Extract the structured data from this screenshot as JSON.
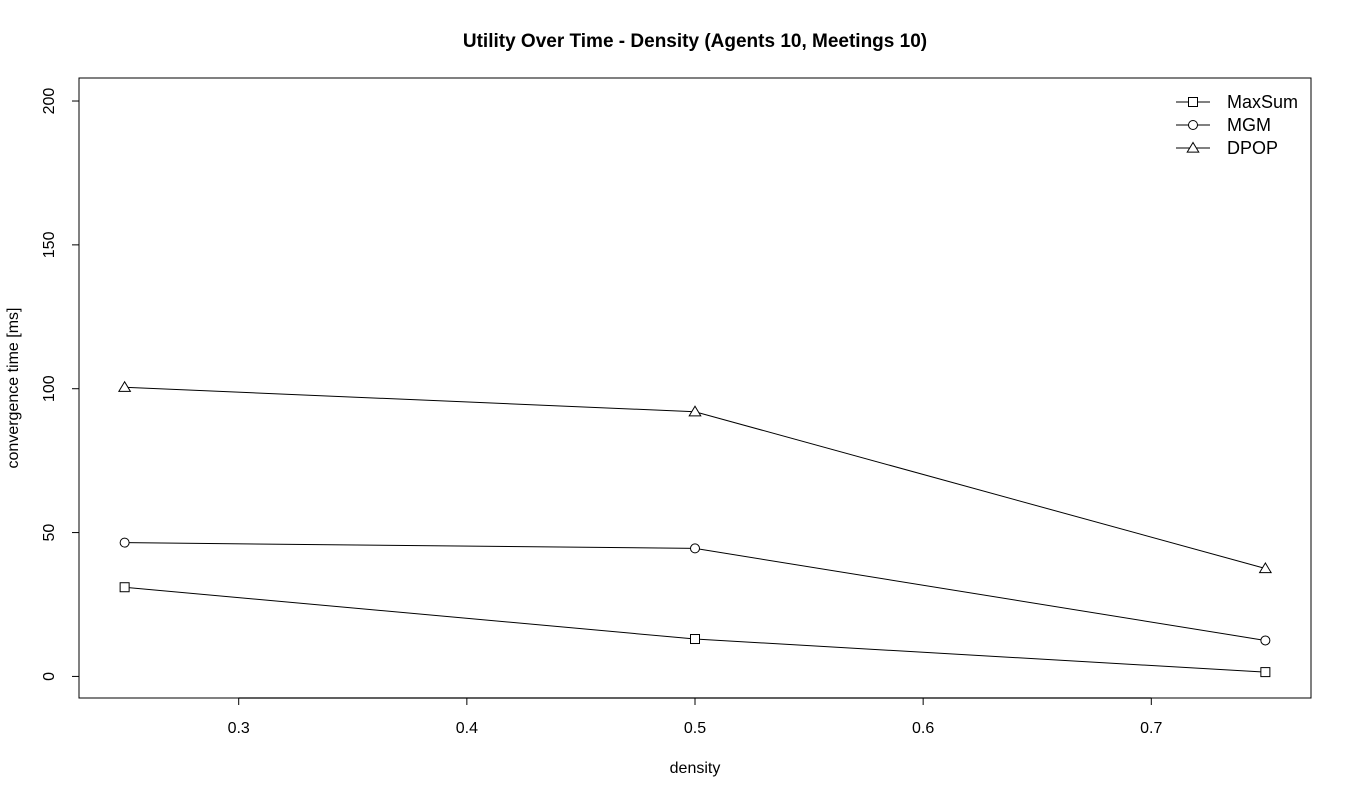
{
  "chart_data": {
    "type": "line",
    "title": "Utility Over Time - Density (Agents 10, Meetings 10)",
    "xlabel": "density",
    "ylabel": "convergence time [ms]",
    "x": [
      0.25,
      0.5,
      0.75
    ],
    "xlim": [
      0.23,
      0.77
    ],
    "ylim": [
      -7.5,
      208
    ],
    "xticks": [
      0.3,
      0.4,
      0.5,
      0.6,
      0.7
    ],
    "yticks": [
      0,
      50,
      100,
      150,
      200
    ],
    "xtick_labels": [
      "0.3",
      "0.4",
      "0.5",
      "0.6",
      "0.7"
    ],
    "ytick_labels": [
      "0",
      "50",
      "100",
      "150",
      "200"
    ],
    "grid": false,
    "legend_position": "top-right",
    "series": [
      {
        "name": "MaxSum",
        "marker": "square",
        "values": [
          31,
          13,
          1.5
        ]
      },
      {
        "name": "MGM",
        "marker": "circle",
        "values": [
          46.5,
          44.5,
          12.5
        ]
      },
      {
        "name": "DPOP",
        "marker": "triangle",
        "values": [
          100.5,
          92,
          37.5
        ]
      }
    ],
    "line_color": "#000000"
  }
}
